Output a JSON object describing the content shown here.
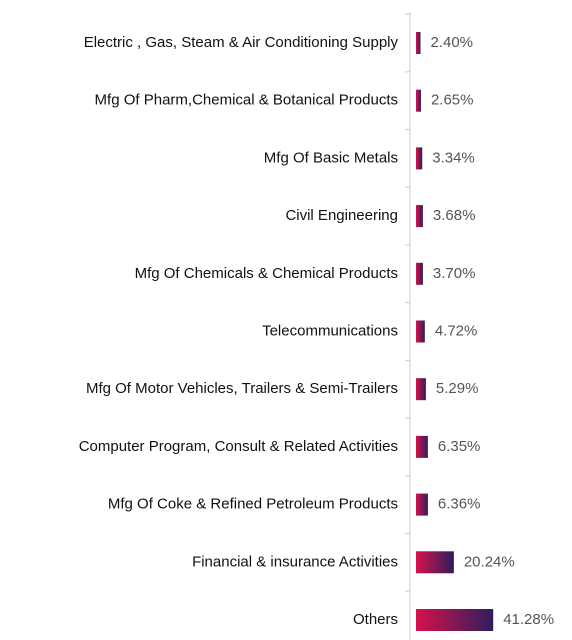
{
  "chart_data": {
    "type": "hbar",
    "categories": [
      "Electric , Gas, Steam & Air Conditioning Supply",
      "Mfg Of Pharm,Chemical & Botanical Products",
      "Mfg Of Basic Metals",
      "Civil Engineering",
      "Mfg Of Chemicals & Chemical Products",
      "Telecommunications",
      "Mfg Of Motor Vehicles, Trailers & Semi-Trailers",
      "Computer Program, Consult & Related Activities",
      "Mfg Of Coke & Refined Petroleum Products",
      "Financial & insurance Activities",
      "Others"
    ],
    "values": [
      2.4,
      2.65,
      3.34,
      3.68,
      3.7,
      4.72,
      5.29,
      6.35,
      6.36,
      20.24,
      41.28
    ],
    "value_labels": [
      "2.40%",
      "2.65%",
      "3.34%",
      "3.68%",
      "3.70%",
      "4.72%",
      "5.29%",
      "6.35%",
      "6.36%",
      "20.24%",
      "41.28%"
    ],
    "gradient": [
      "#d5124c",
      "#2f1d5c"
    ]
  }
}
